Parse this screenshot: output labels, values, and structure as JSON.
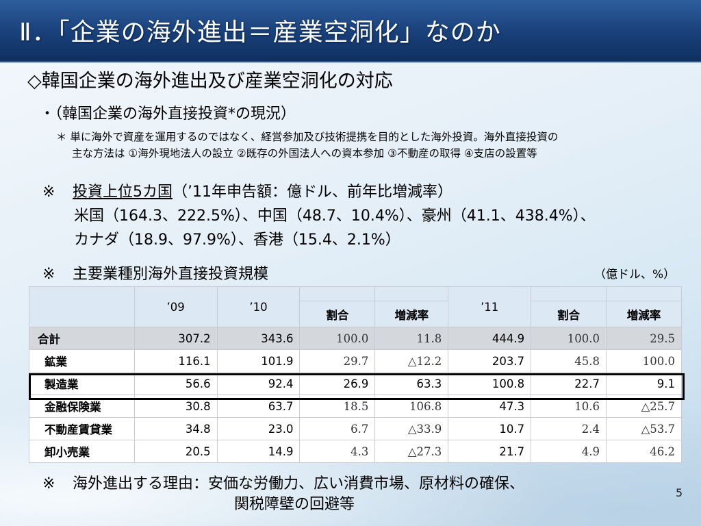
{
  "title": "Ⅱ．「企業の海外進出＝産業空洞化」なのか",
  "heading": "◇韓国企業の海外進出及び産業空洞化の対応",
  "subheading": "・（韓国企業の海外直接投資*の現況）",
  "note": {
    "line1": "＊ 単に海外で資産を運用するのではなく、経営参加及び技術提携を目的とした海外投資。海外直接投資の",
    "line2": "主な方法は ①海外現地法人の設立 ②既存の外国法人への資本参加 ③不動産の取得 ④支店の設置等"
  },
  "top5": {
    "mark": "※",
    "label": "投資上位5カ国",
    "rest": "（’11年申告額：億ドル、前年比増減率）",
    "line2": "米国（164.3、222.5%）、中国（48.7、10.4%）、豪州（41.1、438.4%）、",
    "line3": "カナダ（18.9、97.9%）、香港（15.4、2.1%）"
  },
  "scale": {
    "mark": "※",
    "title": "主要業種別海外直接投資規模",
    "unit": "（億ドル、%）"
  },
  "table": {
    "headers": {
      "y09": "’09",
      "y10": "’10",
      "share": "割合",
      "growth": "増減率",
      "y11": "’11",
      "share2": "割合",
      "growth2": "増減率"
    },
    "rows": [
      {
        "label": "合計",
        "y09": "307.2",
        "y10": "343.6",
        "share10": "100.0",
        "growth10": "11.8",
        "y11": "444.9",
        "share11": "100.0",
        "growth11": "29.5"
      },
      {
        "label": "鉱業",
        "y09": "116.1",
        "y10": "101.9",
        "share10": "29.7",
        "growth10": "△12.2",
        "y11": "203.7",
        "share11": "45.8",
        "growth11": "100.0"
      },
      {
        "label": "製造業",
        "y09": "56.6",
        "y10": "92.4",
        "share10": "26.9",
        "growth10": "63.3",
        "y11": "100.8",
        "share11": "22.7",
        "growth11": "9.1"
      },
      {
        "label": "金融保険業",
        "y09": "30.8",
        "y10": "63.7",
        "share10": "18.5",
        "growth10": "106.8",
        "y11": "47.3",
        "share11": "10.6",
        "growth11": "△25.7"
      },
      {
        "label": "不動産賃貸業",
        "y09": "34.8",
        "y10": "23.0",
        "share10": "6.7",
        "growth10": "△33.9",
        "y11": "10.7",
        "share11": "2.4",
        "growth11": "△53.7"
      },
      {
        "label": "卸小売業",
        "y09": "20.5",
        "y10": "14.9",
        "share10": "4.3",
        "growth10": "△27.3",
        "y11": "21.7",
        "share11": "4.9",
        "growth11": "46.2"
      }
    ]
  },
  "reason": {
    "mark": "※",
    "line1": "海外進出する理由：安価な労働力、広い消費市場、原材料の確保、",
    "line2": "関税障壁の回避等"
  },
  "page_number": "5"
}
